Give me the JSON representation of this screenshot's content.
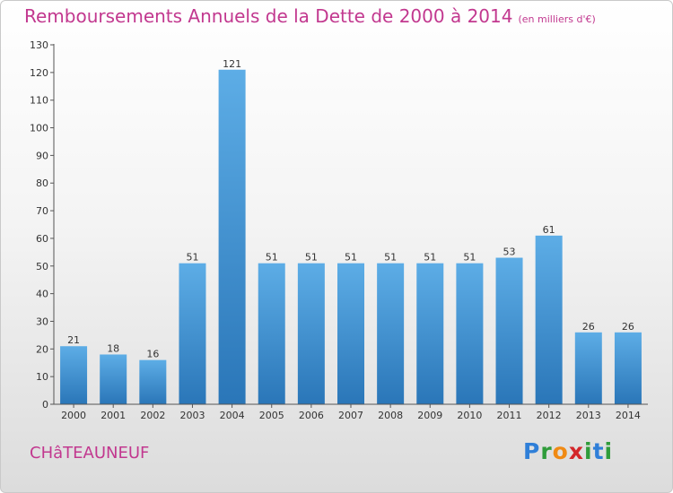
{
  "header": {
    "title": "Remboursements Annuels de la Dette de 2000 à 2014",
    "subtitle": "(en milliers d'€)"
  },
  "footer": {
    "town": "CHâTEAUNEUF",
    "brand": "Proxiti"
  },
  "colors": {
    "title": "#c2388f",
    "bar_top": "#5dade6",
    "bar_bottom": "#2a76b8"
  },
  "chart_data": {
    "type": "bar",
    "categories": [
      "2000",
      "2001",
      "2002",
      "2003",
      "2004",
      "2005",
      "2006",
      "2007",
      "2008",
      "2009",
      "2010",
      "2011",
      "2012",
      "2013",
      "2014"
    ],
    "values": [
      21,
      18,
      16,
      51,
      121,
      51,
      51,
      51,
      51,
      51,
      51,
      53,
      61,
      26,
      26
    ],
    "yticks": [
      0,
      10,
      20,
      30,
      40,
      50,
      60,
      70,
      80,
      90,
      100,
      110,
      120,
      130
    ],
    "ylim": [
      0,
      130
    ],
    "grid": false,
    "data_labels": true
  }
}
